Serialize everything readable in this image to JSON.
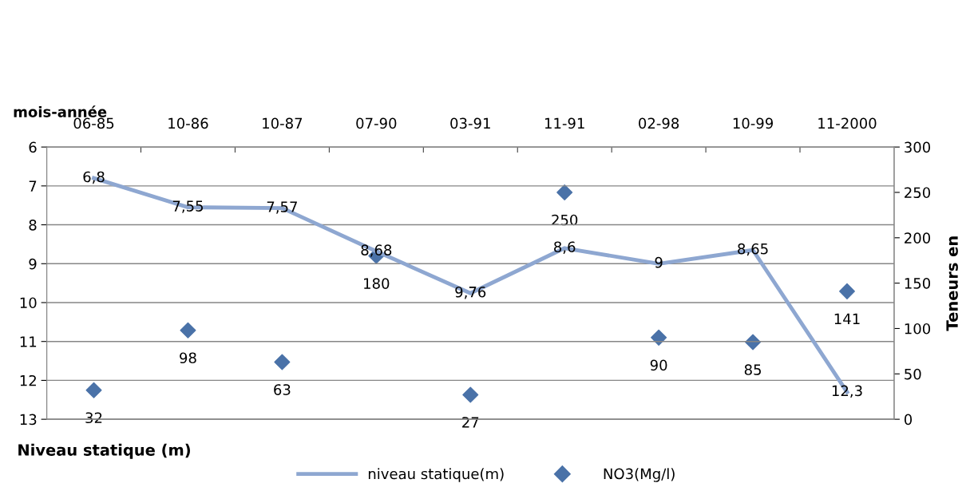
{
  "chart_data": {
    "type": "line",
    "xlabel": "mois-année",
    "ylabel": "Niveau statique (m)",
    "y2label": "Teneurs en",
    "categories": [
      "06-85",
      "10-86",
      "10-87",
      "07-90",
      "03-91",
      "11-91",
      "02-98",
      "10-99",
      "11-2000"
    ],
    "series": [
      {
        "name": "niveau statique(m)",
        "type": "line",
        "color": "#8ea7d1",
        "marker": "none",
        "values": [
          6.8,
          7.55,
          7.57,
          8.68,
          9.76,
          8.6,
          9,
          8.65,
          12.3
        ],
        "value_labels": [
          "6,8",
          "7,55",
          "7,57",
          "8,68",
          "9,76",
          "8,6",
          "9",
          "8,65",
          "12,3"
        ]
      },
      {
        "name": "NO3(Mg/l)",
        "type": "scatter",
        "axis": "y2",
        "color": "#4a72a8",
        "marker": "diamond",
        "values": [
          32,
          98,
          63,
          180,
          27,
          250,
          90,
          85,
          141
        ],
        "value_labels": [
          "32",
          "98",
          "63",
          "180",
          "27",
          "250",
          "90",
          "85",
          "141"
        ]
      }
    ],
    "ylim": [
      13,
      6
    ],
    "yticks": [
      6,
      7,
      8,
      9,
      10,
      11,
      12,
      13
    ],
    "y2lim": [
      0,
      300
    ],
    "y2ticks": [
      0,
      50,
      100,
      150,
      200,
      250,
      300
    ],
    "grid": "y",
    "legend": "bottom"
  }
}
